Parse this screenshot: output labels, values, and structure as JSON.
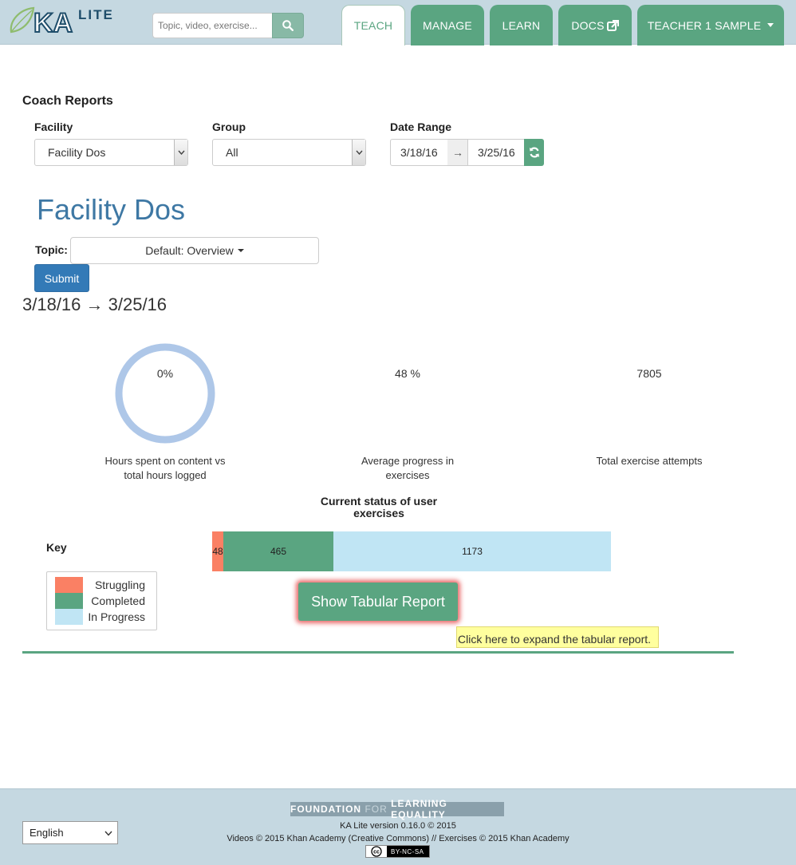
{
  "header": {
    "logo_text": "KA LITE",
    "search_placeholder": "Topic, video, exercise...",
    "nav": {
      "teach": "TEACH",
      "manage": "MANAGE",
      "learn": "LEARN",
      "docs": "DOCS",
      "user": "TEACHER 1 SAMPLE"
    }
  },
  "page": {
    "title": "Coach Reports",
    "filters": {
      "facility_label": "Facility",
      "facility_value": "Facility Dos",
      "group_label": "Group",
      "group_value": "All",
      "date_label": "Date Range",
      "date_start": "3/18/16",
      "date_arrow": "→",
      "date_end": "3/25/16"
    },
    "facility_heading": "Facility Dos",
    "topic_label": "Topic:",
    "topic_value": "Default: Overview",
    "submit_label": "Submit",
    "date_range_heading": "3/18/16 → 3/25/16"
  },
  "stats": [
    {
      "value": "0%",
      "label_line1": "Hours spent on content vs",
      "label_line2": "total hours logged",
      "fraction": 0
    },
    {
      "value": "48 %",
      "label_line1": "Average progress in",
      "label_line2": "exercises"
    },
    {
      "value": "7805",
      "label_line1": "Total exercise attempts",
      "label_line2": ""
    }
  ],
  "status_chart": {
    "title_line1": "Current status of user",
    "title_line2": "exercises",
    "key_label": "Key",
    "segments": [
      {
        "name": "Struggling",
        "value": 48,
        "color": "#fa8064"
      },
      {
        "name": "Completed",
        "value": 465,
        "color": "#5aa581"
      },
      {
        "name": "In Progress",
        "value": 1173,
        "color": "#c0e5f4"
      }
    ]
  },
  "tabular_button": "Show Tabular Report",
  "tooltip": "Click here to expand the tabular report.",
  "footer": {
    "fle_word1": "FOUNDATION",
    "fle_word2": "FOR",
    "fle_word3": "LEARNING EQUALITY",
    "version": "KA Lite version 0.16.0 © 2015",
    "credits": "Videos © 2015 Khan Academy (Creative Commons) // Exercises © 2015 Khan Academy",
    "cc_text": "BY-NC-SA",
    "language": "English"
  },
  "colors": {
    "brand_green": "#5aa581",
    "header_bg": "#c5d8e1",
    "title_blue": "#3e78a4",
    "submit_blue": "#337ab7",
    "ring": "#aec7e8"
  },
  "icons": [
    "leaf-icon",
    "search-icon",
    "external-link-icon",
    "caret-down-icon",
    "refresh-icon"
  ]
}
